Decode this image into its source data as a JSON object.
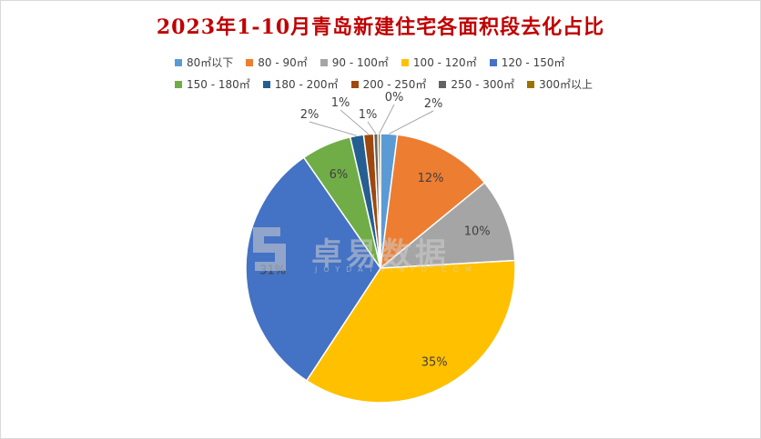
{
  "chart_data": {
    "type": "pie",
    "title": "2023年1-10月青岛新建住宅各面积段去化占比",
    "slices": [
      {
        "name": "80㎡以下",
        "value": 2,
        "label": "2%",
        "color": "#5b9bd5"
      },
      {
        "name": "80 - 90㎡",
        "value": 12,
        "label": "12%",
        "color": "#ed7d31"
      },
      {
        "name": "90 - 100㎡",
        "value": 10,
        "label": "10%",
        "color": "#a5a5a5"
      },
      {
        "name": "100 - 120㎡",
        "value": 35,
        "label": "35%",
        "color": "#ffc000"
      },
      {
        "name": "120 - 150㎡",
        "value": 31,
        "label": "31%",
        "color": "#4472c4"
      },
      {
        "name": "150 - 180㎡",
        "value": 6,
        "label": "6%",
        "color": "#70ad47"
      },
      {
        "name": "180 - 200㎡",
        "value": 1.6,
        "label": "2%",
        "color": "#255e91"
      },
      {
        "name": "200 - 250㎡",
        "value": 1.2,
        "label": "1%",
        "color": "#9e480e"
      },
      {
        "name": "250 - 300㎡",
        "value": 0.5,
        "label": "1%",
        "color": "#636363"
      },
      {
        "name": "300㎡以上",
        "value": 0.3,
        "label": "0%",
        "color": "#997300"
      }
    ],
    "legend_position": "top"
  },
  "watermark": {
    "text": "卓易数据",
    "subtext": "JOYDATAINFO.COM"
  }
}
